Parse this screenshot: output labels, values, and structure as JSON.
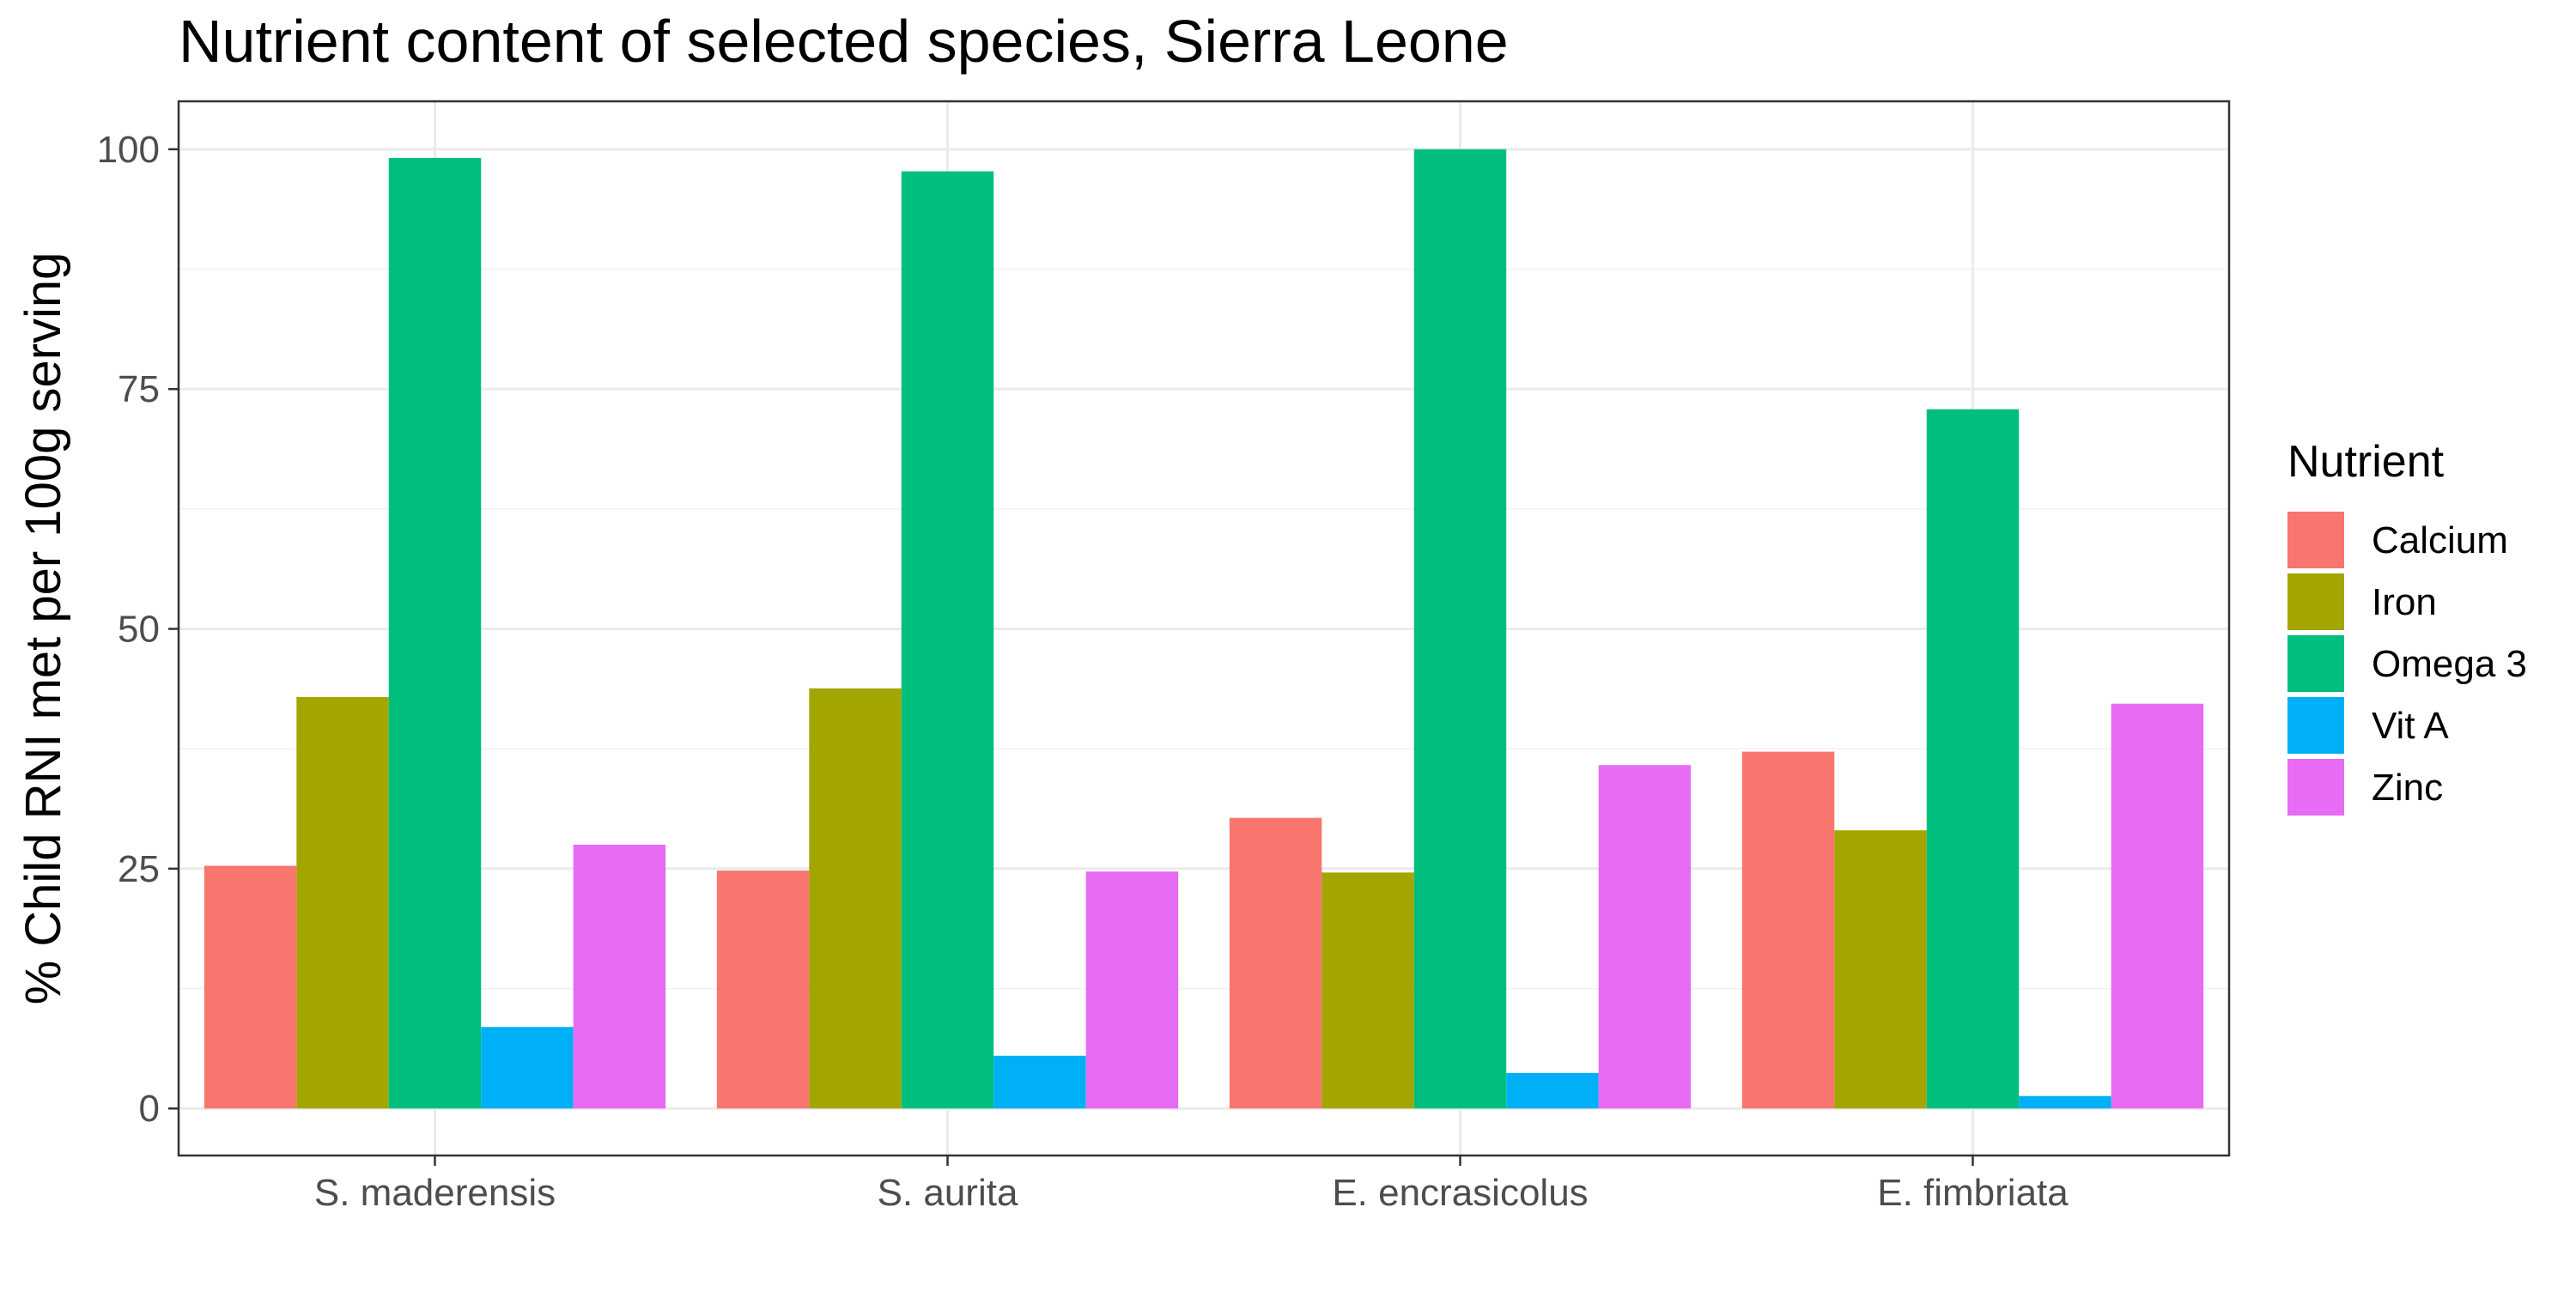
{
  "chart_data": {
    "type": "bar",
    "title": "Nutrient content of selected species, Sierra Leone",
    "xlabel": "",
    "ylabel": "% Child RNI met per 100g serving",
    "ylim": [
      -4.9,
      105
    ],
    "yticks": [
      0,
      25,
      50,
      75,
      100
    ],
    "grid": true,
    "legend_position": "right",
    "legend_title": "Nutrient",
    "categories": [
      "S. maderensis",
      "S. aurita",
      "E. encrasicolus",
      "E. fimbriata"
    ],
    "series": [
      {
        "name": "Calcium",
        "color": "#F8766D",
        "values": [
          25.3,
          24.8,
          30.3,
          37.2
        ]
      },
      {
        "name": "Iron",
        "color": "#A3A500",
        "values": [
          42.9,
          43.8,
          24.6,
          29.0
        ]
      },
      {
        "name": "Omega 3",
        "color": "#00BF7D",
        "values": [
          99.1,
          97.7,
          100.0,
          72.9
        ]
      },
      {
        "name": "Vit A",
        "color": "#00B0F6",
        "values": [
          8.5,
          5.5,
          3.7,
          1.3
        ]
      },
      {
        "name": "Zinc",
        "color": "#E76BF3",
        "values": [
          27.5,
          24.7,
          35.8,
          42.2
        ]
      }
    ]
  }
}
